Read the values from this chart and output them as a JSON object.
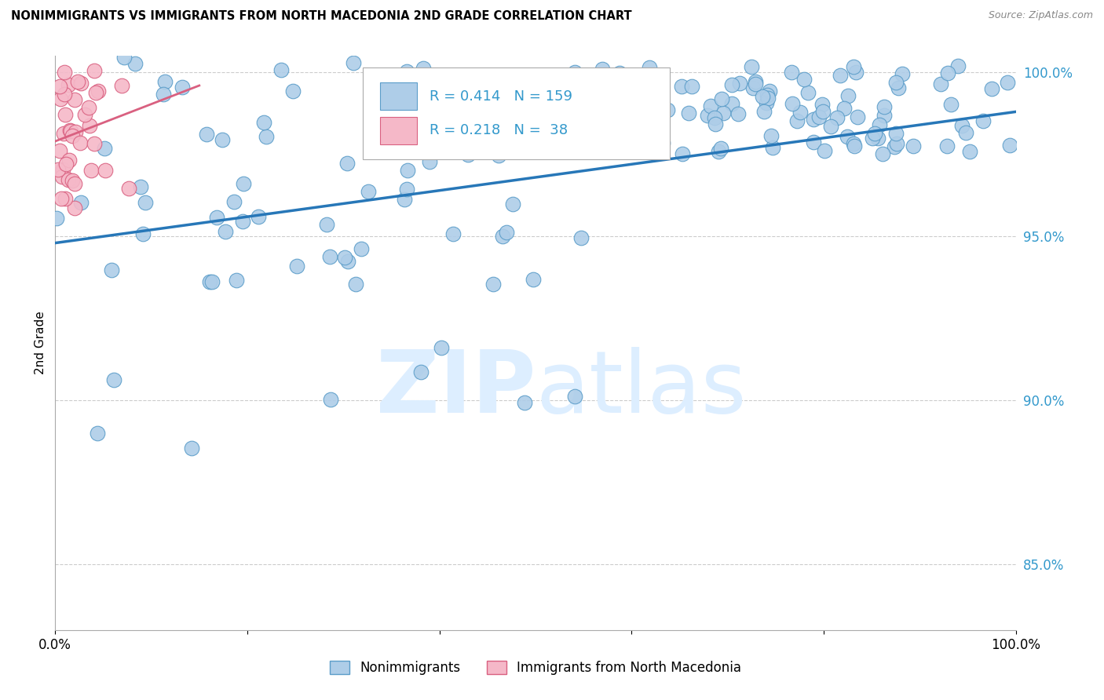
{
  "title": "NONIMMIGRANTS VS IMMIGRANTS FROM NORTH MACEDONIA 2ND GRADE CORRELATION CHART",
  "source": "Source: ZipAtlas.com",
  "ylabel": "2nd Grade",
  "ytick_values": [
    0.85,
    0.9,
    0.95,
    1.0
  ],
  "legend1_label": "Nonimmigrants",
  "legend2_label": "Immigrants from North Macedonia",
  "R1": 0.414,
  "N1": 159,
  "R2": 0.218,
  "N2": 38,
  "blue_color": "#aecde8",
  "blue_edge": "#5b9dc9",
  "pink_color": "#f5b8c8",
  "pink_edge": "#d96080",
  "line_blue": "#2777b8",
  "line_pink": "#d96080",
  "text_blue": "#3399cc",
  "watermark_color": "#ddeeff",
  "blue_line_x0": 0.0,
  "blue_line_x1": 1.0,
  "blue_line_y0": 0.948,
  "blue_line_y1": 0.988,
  "pink_line_x0": 0.0,
  "pink_line_x1": 0.15,
  "pink_line_y0": 0.979,
  "pink_line_y1": 0.996,
  "xlim": [
    0.0,
    1.0
  ],
  "ylim": [
    0.83,
    1.005
  ]
}
